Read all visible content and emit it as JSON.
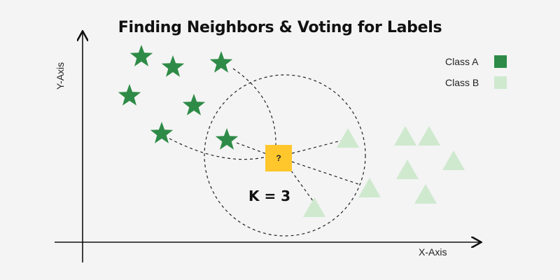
{
  "title": "Finding Neighbors &  Voting for Labels",
  "axes": {
    "x_label": "X-Axis",
    "y_label": "Y-Axis"
  },
  "legend": [
    {
      "label": "Class A",
      "color": "#2e8b47"
    },
    {
      "label": "Class B",
      "color": "#cfe9cf"
    }
  ],
  "query_point": {
    "label": "?",
    "color": "#ffc72c"
  },
  "k_label": "K = 3",
  "colors": {
    "class_a": "#2e8b47",
    "class_b": "#cfe9cf",
    "query": "#ffc72c",
    "axis": "#111111"
  }
}
